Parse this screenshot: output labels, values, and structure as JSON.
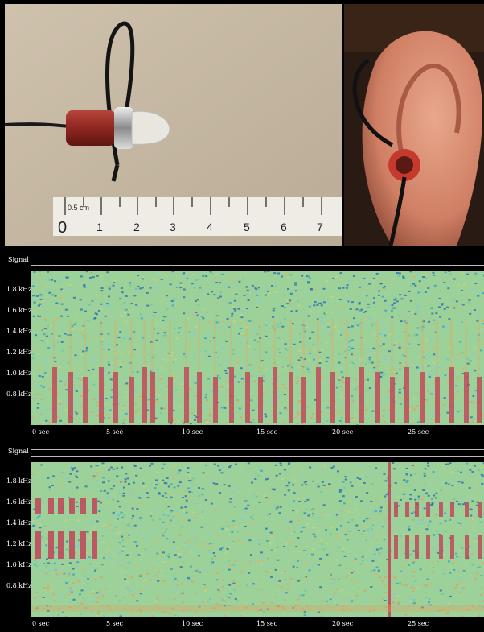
{
  "photos": {
    "left": {
      "ruler_labels": [
        "0",
        "1",
        "2",
        "3",
        "4",
        "5",
        "6",
        "7"
      ],
      "ruler_unit": "0.5 cm"
    },
    "right": {}
  },
  "spectrograms": [
    {
      "signal_label": "Signal",
      "y_ticks": [
        "1.8 kHz",
        "1.6 kHz",
        "1.4 kHz",
        "1.2 kHz",
        "1.0 kHz",
        "0.8 kHz"
      ],
      "x_ticks": [
        "0  sec",
        "5  sec",
        "10  sec",
        "15  sec",
        "20  sec",
        "25  sec"
      ]
    },
    {
      "signal_label": "Signal",
      "y_ticks": [
        "1.8 kHz",
        "1.6 kHz",
        "1.4 kHz",
        "1.2 kHz",
        "1.0 kHz",
        "0.8 kHz"
      ],
      "x_ticks": [
        "0  sec",
        "5  sec",
        "10  sec",
        "15  sec",
        "20  sec",
        "25  sec"
      ]
    }
  ],
  "colors": {
    "spectrogram_bg": "#9cd29a",
    "energy_high": "#c04a5c",
    "energy_low": "#2a6fb0"
  }
}
